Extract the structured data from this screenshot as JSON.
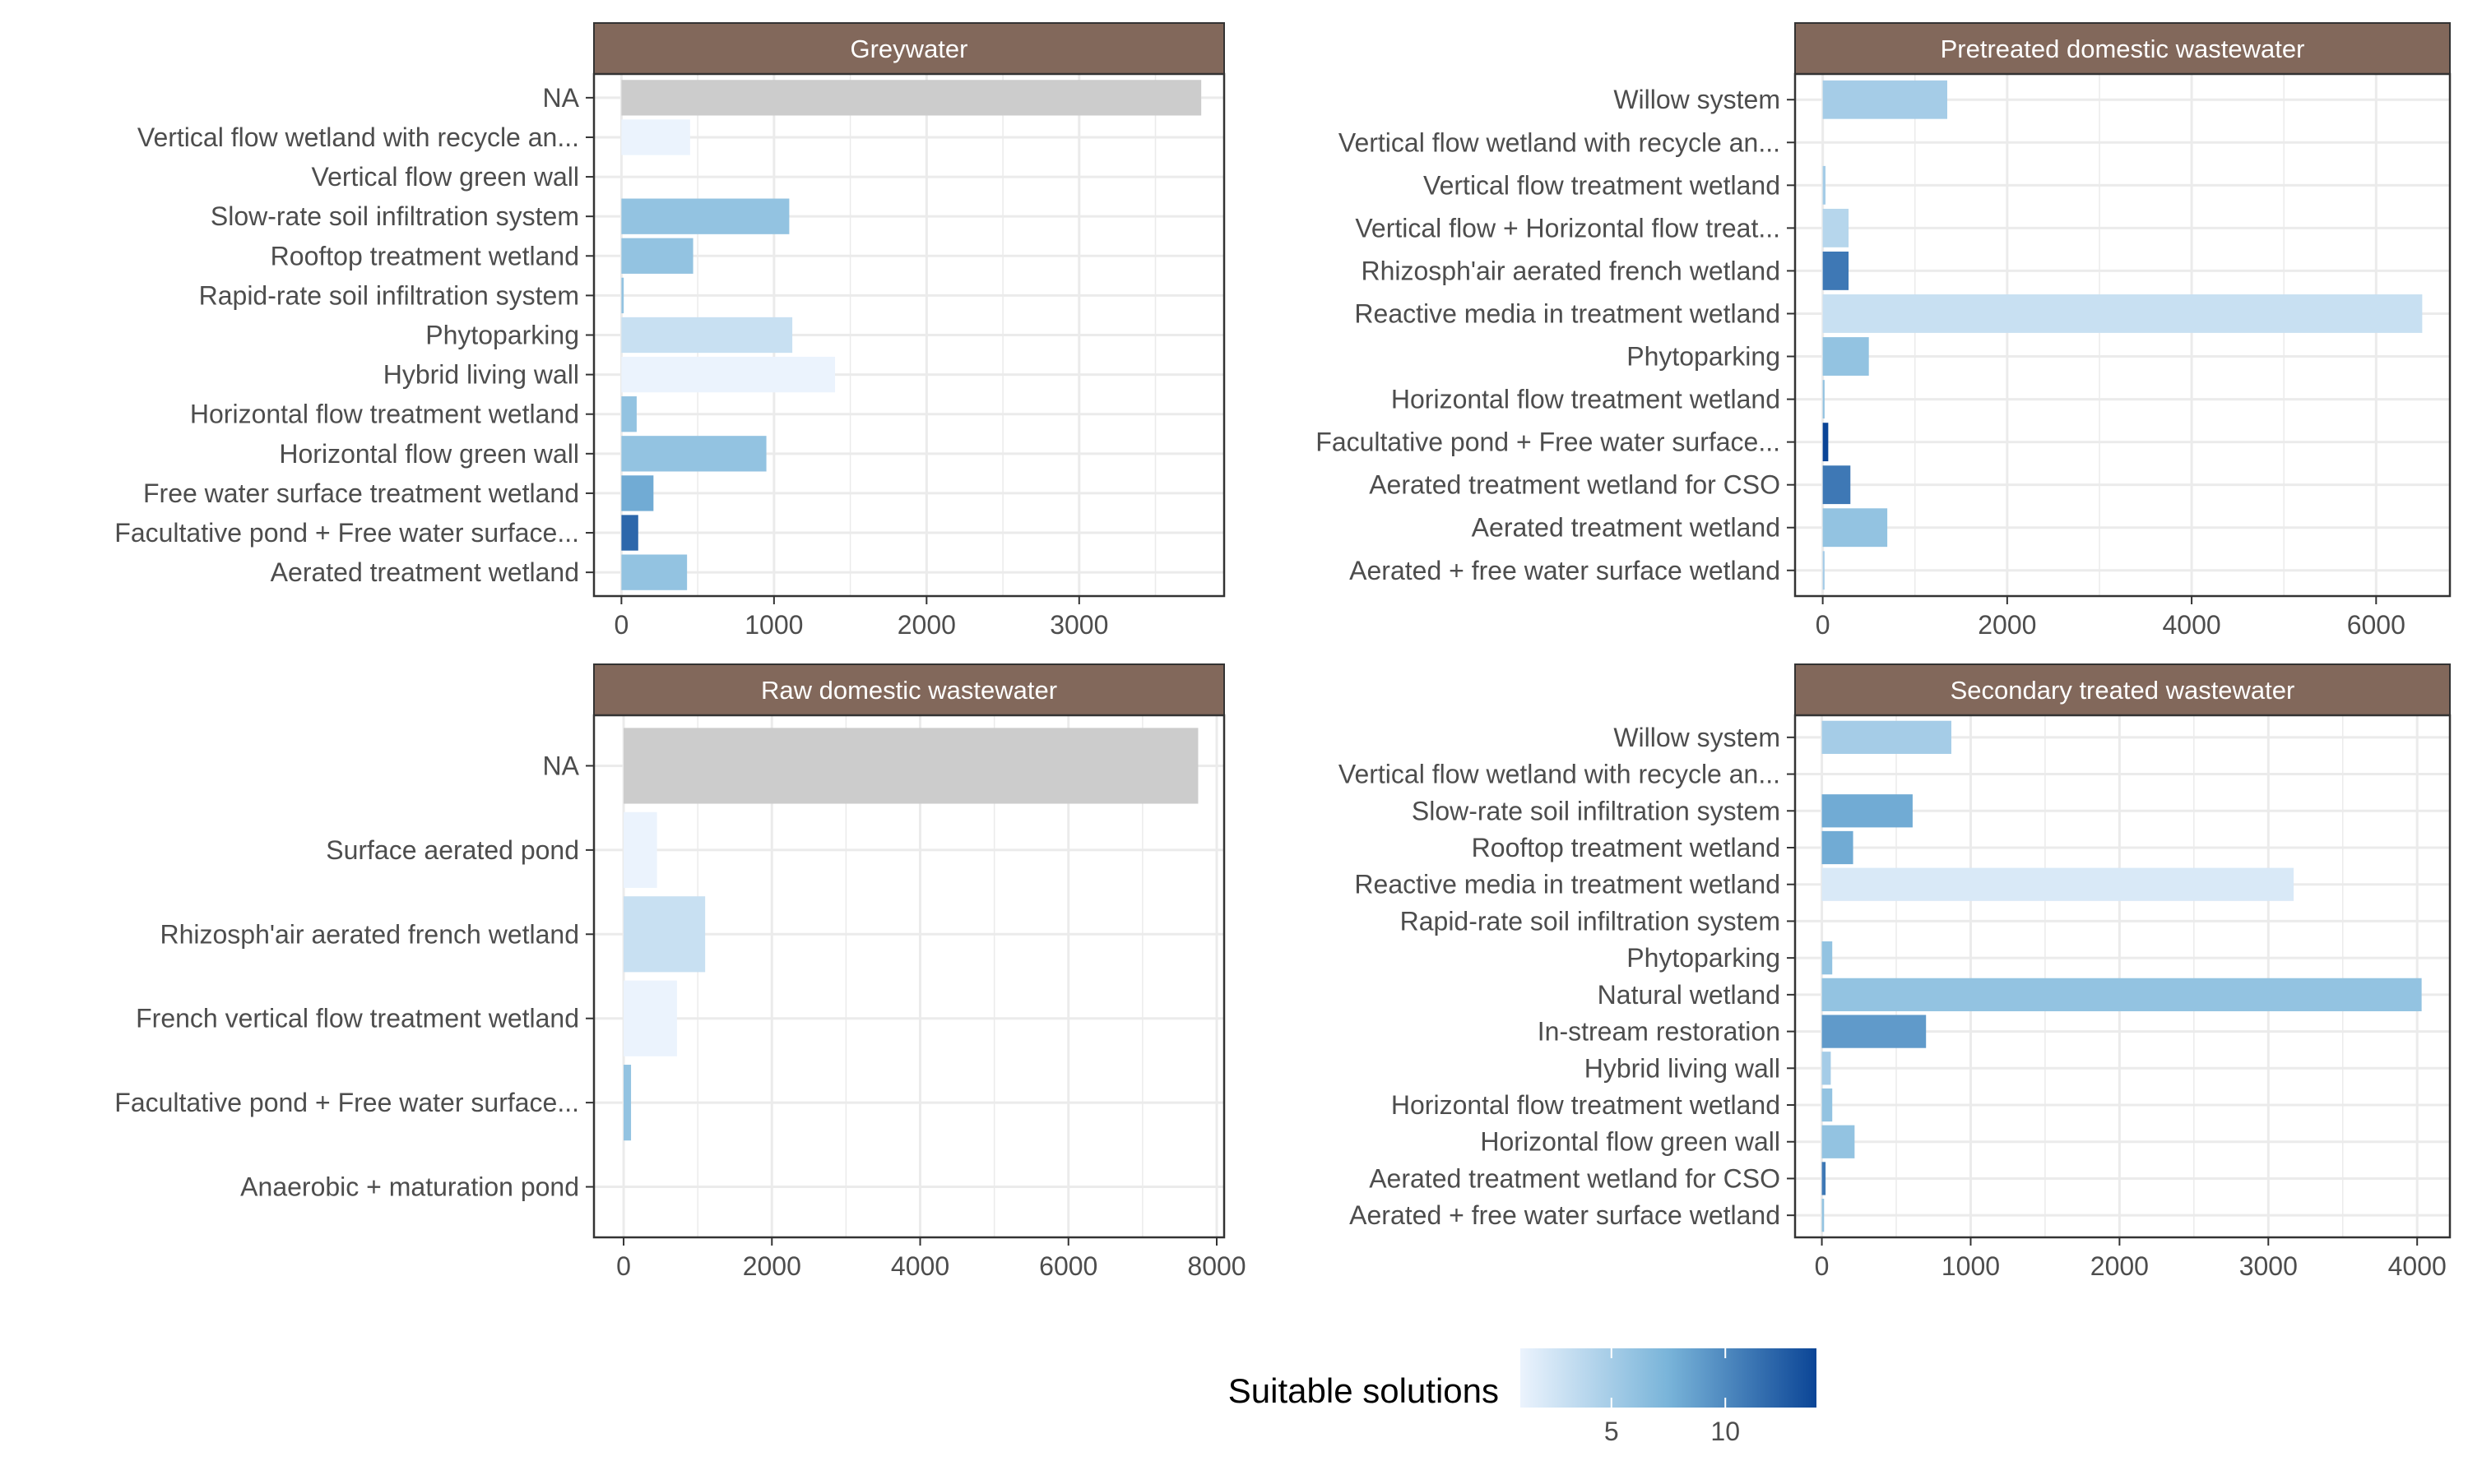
{
  "legend": {
    "title": "Suitable solutions",
    "ticks": [
      {
        "value": 5,
        "label": "5"
      },
      {
        "value": 10,
        "label": "10"
      }
    ],
    "range": [
      1,
      14
    ],
    "color_low": "#ebf3fd",
    "color_mid": "#79b4d9",
    "color_high": "#0b4596"
  },
  "style": {
    "strip_fill": "#82685b",
    "strip_text": "#ffffff",
    "na_color": "#cccccc",
    "grid_color": "#ebebeb",
    "panel_border": "#333333",
    "axis_text": "#4d4d4d"
  },
  "chart_data": [
    {
      "type": "bar",
      "orientation": "horizontal",
      "title": "Greywater",
      "xlim": [
        -180,
        3950
      ],
      "x_ticks": [
        0,
        1000,
        2000,
        3000
      ],
      "categories": [
        "NA",
        "Vertical flow wetland with recycle an...",
        "Vertical flow green wall",
        "Slow-rate soil infiltration system",
        "Rooftop treatment wetland",
        "Rapid-rate soil  infiltration system",
        "Phytoparking",
        "Hybrid living wall",
        "Horizontal flow treatment wetland",
        "Horizontal flow green wall",
        "Free water surface treatment wetland",
        "Facultative pond + Free water surface...",
        "Aerated treatment wetland"
      ],
      "values": [
        3800,
        450,
        0,
        1100,
        470,
        15,
        1120,
        1400,
        100,
        950,
        210,
        110,
        430
      ],
      "suitable_solutions": [
        null,
        1,
        null,
        6,
        6,
        6,
        3,
        1,
        6,
        6,
        8,
        12,
        6
      ]
    },
    {
      "type": "bar",
      "orientation": "horizontal",
      "title": "Pretreated domestic wastewater",
      "xlim": [
        -300,
        6800
      ],
      "x_ticks": [
        0,
        2000,
        4000,
        6000
      ],
      "categories": [
        "Willow system",
        "Vertical flow wetland with recycle an...",
        "Vertical flow treatment wetland",
        "Vertical flow + Horizontal flow treat...",
        "Rhizosph'air aerated french wetland",
        "Reactive media in treatment wetland",
        "Phytoparking",
        "Horizontal flow treatment wetland",
        "Facultative pond + Free water surface...",
        "Aerated treatment wetland for CSO",
        "Aerated treatment wetland",
        "Aerated + free water surface wetland"
      ],
      "values": [
        1350,
        0,
        30,
        280,
        280,
        6500,
        500,
        20,
        60,
        300,
        700,
        20
      ],
      "suitable_solutions": [
        5,
        null,
        5,
        4,
        11,
        3,
        6,
        6,
        14,
        11,
        6,
        5
      ]
    },
    {
      "type": "bar",
      "orientation": "horizontal",
      "title": "Raw domestic wastewater",
      "xlim": [
        -400,
        8100
      ],
      "x_ticks": [
        0,
        2000,
        4000,
        6000,
        8000
      ],
      "categories": [
        "NA",
        "Surface aerated pond",
        "Rhizosph'air aerated french wetland",
        "French vertical flow treatment wetland",
        "Facultative pond + Free water surface...",
        "Anaerobic + maturation pond"
      ],
      "values": [
        7750,
        450,
        1100,
        720,
        100,
        0
      ],
      "suitable_solutions": [
        null,
        1,
        3,
        1,
        6,
        null
      ]
    },
    {
      "type": "bar",
      "orientation": "horizontal",
      "title": "Secondary treated wastewater",
      "xlim": [
        -180,
        4220
      ],
      "x_ticks": [
        0,
        1000,
        2000,
        3000,
        4000
      ],
      "categories": [
        "Willow system",
        "Vertical flow wetland with recycle an...",
        "Slow-rate soil infiltration system",
        "Rooftop treatment wetland",
        "Reactive media in treatment wetland",
        "Rapid-rate soil  infiltration system",
        "Phytoparking",
        "Natural wetland",
        "In-stream restoration",
        "Hybrid living wall",
        "Horizontal flow treatment wetland",
        "Horizontal flow green wall",
        "Aerated treatment wetland for CSO",
        "Aerated + free water surface wetland"
      ],
      "values": [
        870,
        0,
        610,
        210,
        3170,
        0,
        70,
        4030,
        700,
        60,
        70,
        220,
        25,
        15
      ],
      "suitable_solutions": [
        5,
        null,
        8,
        8,
        2,
        null,
        6,
        6,
        9,
        5,
        6,
        6,
        11,
        6
      ]
    }
  ]
}
